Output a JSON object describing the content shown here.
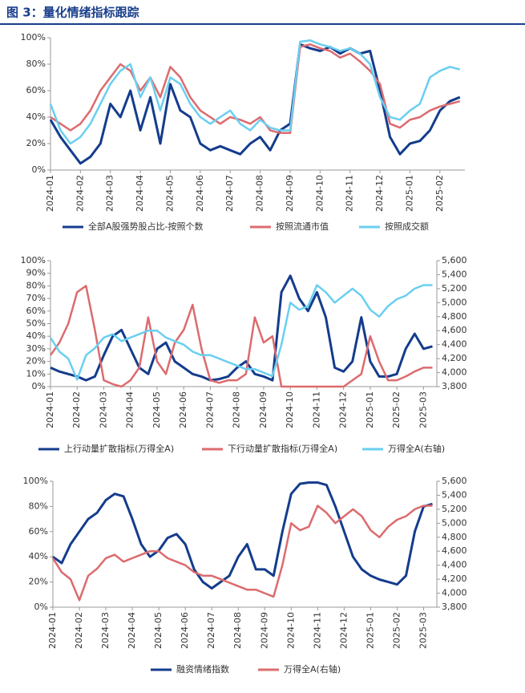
{
  "title": "图 3：量化情绪指标跟踪",
  "chart_data": [
    {
      "type": "line",
      "legend": "bottom",
      "categories": [
        "2024-01",
        null,
        null,
        "2024-02",
        null,
        null,
        "2024-03",
        null,
        null,
        "2024-04",
        null,
        null,
        "2024-05",
        null,
        null,
        "2024-06",
        null,
        null,
        "2024-07",
        null,
        null,
        "2024-08",
        null,
        null,
        "2024-09",
        null,
        null,
        "2024-10",
        null,
        null,
        "2024-11",
        null,
        null,
        "2024-12",
        null,
        null,
        "2025-01",
        null,
        null,
        "2025-02",
        null,
        null
      ],
      "ylim": [
        0,
        100
      ],
      "yticks": [
        {
          "value": 0,
          "label": "0%"
        },
        {
          "value": 20,
          "label": "20%"
        },
        {
          "value": 40,
          "label": "40%"
        },
        {
          "value": 60,
          "label": "60%"
        },
        {
          "value": 80,
          "label": "80%"
        },
        {
          "value": 100,
          "label": "100%"
        }
      ],
      "series": [
        {
          "name": "全部A股强势股占比-按照个数",
          "color": "#143c8c",
          "values": [
            38,
            25,
            15,
            5,
            10,
            20,
            50,
            40,
            60,
            30,
            55,
            20,
            65,
            45,
            40,
            20,
            15,
            18,
            15,
            12,
            20,
            25,
            15,
            30,
            35,
            95,
            92,
            90,
            93,
            88,
            92,
            88,
            90,
            60,
            25,
            12,
            20,
            22,
            30,
            45,
            52,
            55
          ]
        },
        {
          "name": "按照流通市值",
          "color": "#dc6b6e",
          "values": [
            40,
            35,
            30,
            35,
            45,
            60,
            70,
            80,
            75,
            60,
            70,
            55,
            78,
            70,
            55,
            45,
            40,
            35,
            40,
            38,
            35,
            40,
            30,
            28,
            28,
            93,
            95,
            92,
            90,
            85,
            88,
            82,
            75,
            65,
            35,
            32,
            38,
            40,
            45,
            48,
            50,
            52
          ]
        },
        {
          "name": "按照成交额",
          "color": "#6acff0",
          "values": [
            50,
            30,
            20,
            25,
            35,
            50,
            65,
            75,
            80,
            55,
            70,
            45,
            70,
            65,
            50,
            40,
            35,
            40,
            45,
            35,
            30,
            38,
            32,
            30,
            30,
            97,
            98,
            95,
            93,
            90,
            92,
            88,
            80,
            55,
            40,
            38,
            45,
            50,
            70,
            75,
            78,
            76
          ]
        }
      ]
    },
    {
      "type": "line",
      "legend": "bottom",
      "categories": [
        "2024-01",
        null,
        null,
        "2024-02",
        null,
        null,
        "2024-03",
        null,
        null,
        "2024-04",
        null,
        null,
        "2024-05",
        null,
        null,
        "2024-06",
        null,
        null,
        "2024-07",
        null,
        null,
        "2024-08",
        null,
        null,
        "2024-09",
        null,
        null,
        "2024-10",
        null,
        null,
        "2024-11",
        null,
        null,
        "2024-12",
        null,
        null,
        "2025-01",
        null,
        null,
        "2025-02",
        null,
        null,
        "2025-03",
        null
      ],
      "ylim": [
        0,
        100
      ],
      "yticks": [
        {
          "value": 0,
          "label": "0%"
        },
        {
          "value": 10,
          "label": "10%"
        },
        {
          "value": 20,
          "label": "20%"
        },
        {
          "value": 30,
          "label": "30%"
        },
        {
          "value": 40,
          "label": "40%"
        },
        {
          "value": 50,
          "label": "50%"
        },
        {
          "value": 60,
          "label": "60%"
        },
        {
          "value": 70,
          "label": "70%"
        },
        {
          "value": 80,
          "label": "80%"
        },
        {
          "value": 90,
          "label": "90%"
        },
        {
          "value": 100,
          "label": "100%"
        }
      ],
      "y2lim": [
        3800,
        5600
      ],
      "y2ticks": [
        {
          "value": 3800,
          "label": "3,800"
        },
        {
          "value": 4000,
          "label": "4,000"
        },
        {
          "value": 4200,
          "label": "4,200"
        },
        {
          "value": 4400,
          "label": "4,400"
        },
        {
          "value": 4600,
          "label": "4,600"
        },
        {
          "value": 4800,
          "label": "4,800"
        },
        {
          "value": 5000,
          "label": "5,000"
        },
        {
          "value": 5200,
          "label": "5,200"
        },
        {
          "value": 5400,
          "label": "5,400"
        },
        {
          "value": 5600,
          "label": "5,600"
        }
      ],
      "series": [
        {
          "name": "上行动量扩散指标(万得全A)",
          "color": "#143c8c",
          "values": [
            15,
            12,
            10,
            8,
            5,
            8,
            25,
            40,
            45,
            30,
            15,
            10,
            30,
            35,
            20,
            15,
            10,
            8,
            5,
            6,
            8,
            15,
            20,
            10,
            8,
            5,
            75,
            88,
            70,
            60,
            75,
            55,
            15,
            12,
            20,
            55,
            20,
            8,
            8,
            10,
            30,
            42,
            30,
            32
          ]
        },
        {
          "name": "下行动量扩散指标(万得全A)",
          "color": "#dc6b6e",
          "values": [
            25,
            35,
            50,
            75,
            80,
            45,
            5,
            2,
            0,
            5,
            15,
            55,
            20,
            10,
            35,
            45,
            65,
            30,
            5,
            3,
            5,
            5,
            10,
            55,
            35,
            40,
            0,
            0,
            0,
            0,
            0,
            0,
            0,
            0,
            5,
            10,
            40,
            20,
            5,
            5,
            8,
            12,
            15,
            15
          ]
        },
        {
          "name": "万得全A(右轴)",
          "color": "#6acff0",
          "axis": "y2",
          "values": [
            4500,
            4300,
            4200,
            3900,
            4250,
            4350,
            4500,
            4550,
            4450,
            4500,
            4550,
            4600,
            4600,
            4500,
            4450,
            4400,
            4300,
            4250,
            4250,
            4200,
            4150,
            4100,
            4050,
            4050,
            4000,
            3950,
            4400,
            5000,
            4900,
            4950,
            5250,
            5150,
            5000,
            5100,
            5200,
            5100,
            4900,
            4800,
            4950,
            5050,
            5100,
            5200,
            5250,
            5250
          ]
        }
      ]
    },
    {
      "type": "line",
      "legend": "bottom",
      "categories": [
        "2024-01",
        null,
        null,
        "2024-02",
        null,
        null,
        "2024-03",
        null,
        null,
        "2024-04",
        null,
        null,
        "2024-05",
        null,
        null,
        "2024-06",
        null,
        null,
        "2024-07",
        null,
        null,
        "2024-08",
        null,
        null,
        "2024-09",
        null,
        null,
        "2024-10",
        null,
        null,
        "2024-11",
        null,
        null,
        "2024-12",
        null,
        null,
        "2025-01",
        null,
        null,
        "2025-02",
        null,
        null,
        "2025-03",
        null
      ],
      "ylim": [
        0,
        100
      ],
      "yticks": [
        {
          "value": 0,
          "label": "0%"
        },
        {
          "value": 20,
          "label": "20%"
        },
        {
          "value": 40,
          "label": "40%"
        },
        {
          "value": 60,
          "label": "60%"
        },
        {
          "value": 80,
          "label": "80%"
        },
        {
          "value": 100,
          "label": "100%"
        }
      ],
      "y2lim": [
        3800,
        5600
      ],
      "y2ticks": [
        {
          "value": 3800,
          "label": "3,800"
        },
        {
          "value": 4000,
          "label": "4,000"
        },
        {
          "value": 4200,
          "label": "4,200"
        },
        {
          "value": 4400,
          "label": "4,400"
        },
        {
          "value": 4600,
          "label": "4,600"
        },
        {
          "value": 4800,
          "label": "4,800"
        },
        {
          "value": 5000,
          "label": "5,000"
        },
        {
          "value": 5200,
          "label": "5,200"
        },
        {
          "value": 5400,
          "label": "5,400"
        },
        {
          "value": 5600,
          "label": "5,600"
        }
      ],
      "series": [
        {
          "name": "融资情绪指数",
          "color": "#143c8c",
          "values": [
            40,
            35,
            50,
            60,
            70,
            75,
            85,
            90,
            88,
            70,
            50,
            40,
            45,
            55,
            58,
            50,
            30,
            20,
            15,
            20,
            25,
            40,
            50,
            30,
            30,
            25,
            60,
            90,
            98,
            99,
            99,
            97,
            80,
            60,
            40,
            30,
            25,
            22,
            20,
            18,
            25,
            60,
            80,
            82
          ]
        },
        {
          "name": "万得全A(右轴)",
          "color": "#dc6b6e",
          "axis": "y2",
          "values": [
            4500,
            4300,
            4200,
            3900,
            4250,
            4350,
            4500,
            4550,
            4450,
            4500,
            4550,
            4600,
            4600,
            4500,
            4450,
            4400,
            4300,
            4250,
            4250,
            4200,
            4150,
            4100,
            4050,
            4050,
            4000,
            3950,
            4400,
            5000,
            4900,
            4950,
            5250,
            5150,
            5000,
            5100,
            5200,
            5100,
            4900,
            4800,
            4950,
            5050,
            5100,
            5200,
            5250,
            5250
          ]
        }
      ]
    }
  ]
}
